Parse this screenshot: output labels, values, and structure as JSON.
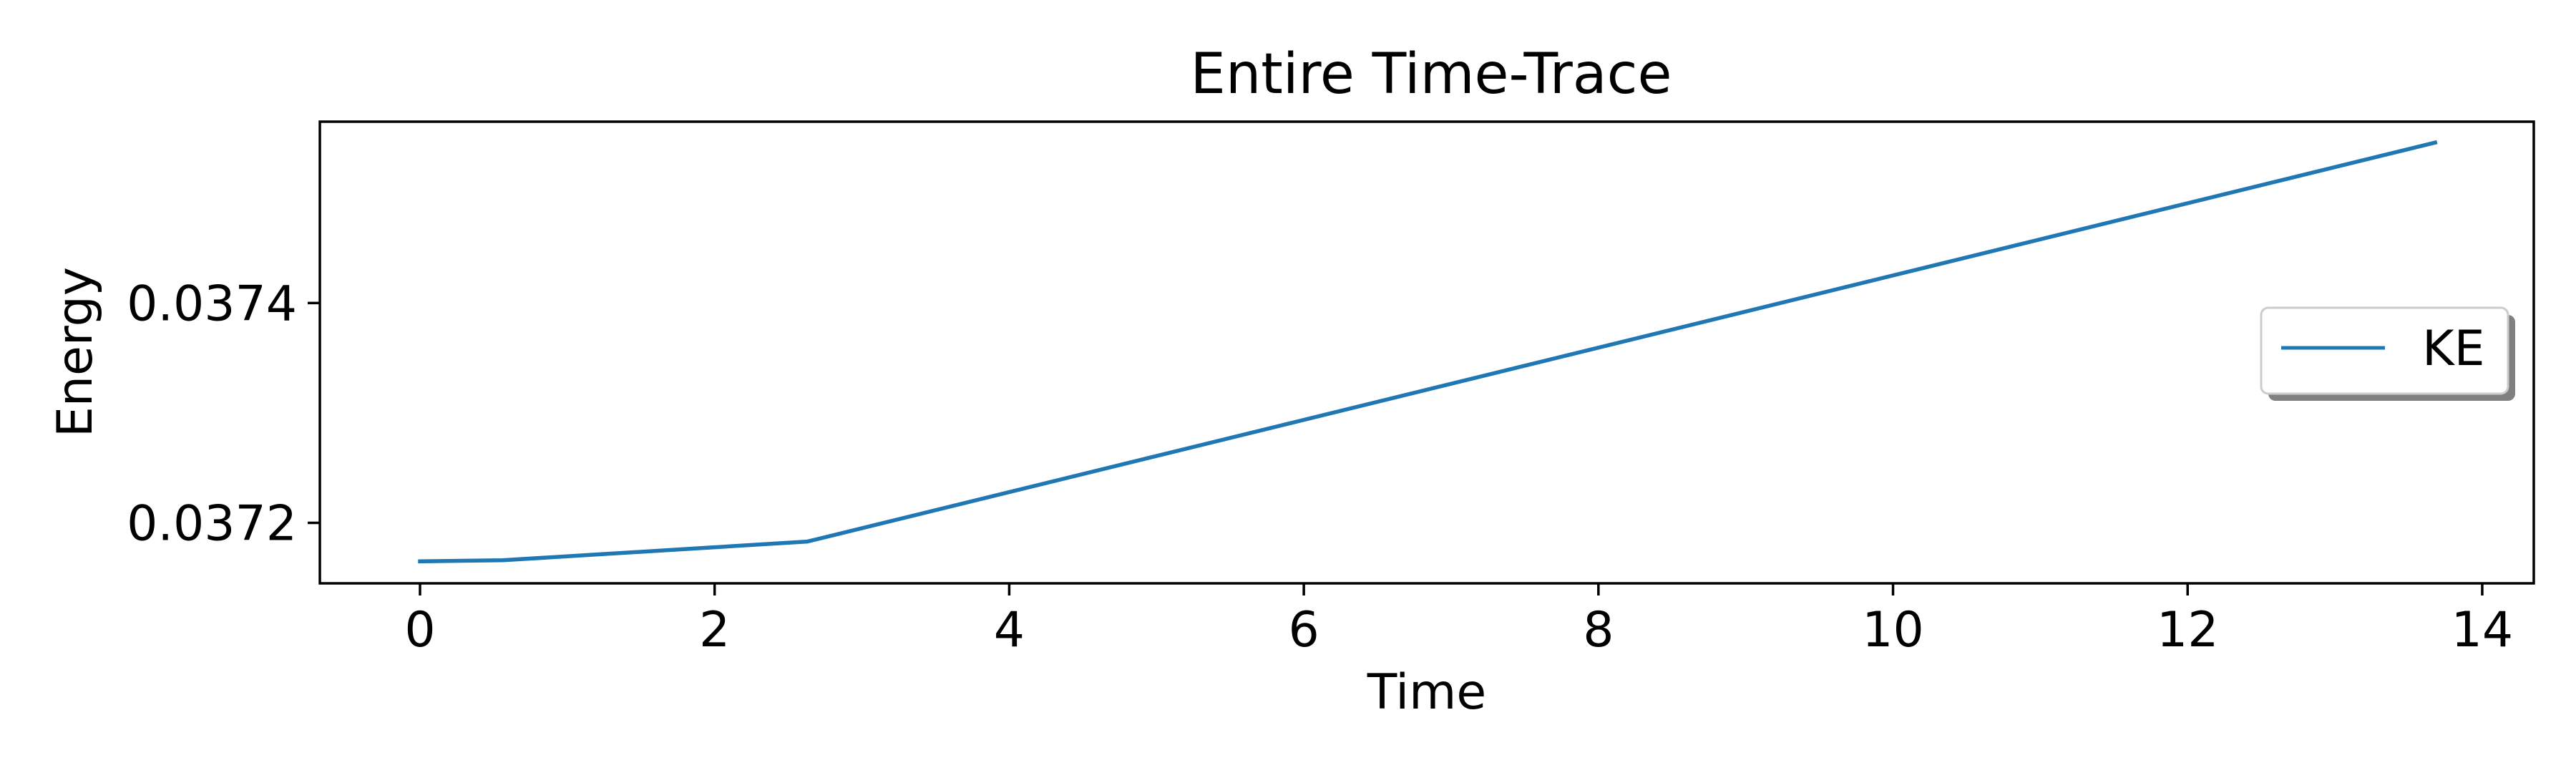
{
  "chart_data": {
    "type": "line",
    "title": "Entire Time-Trace",
    "xlabel": "Time",
    "ylabel": "Energy",
    "xlim": [
      -0.68,
      14.35
    ],
    "ylim": [
      0.037145,
      0.037565
    ],
    "x_ticks": [
      0,
      2,
      4,
      6,
      8,
      10,
      12,
      14
    ],
    "x_tick_labels": [
      "0",
      "2",
      "4",
      "6",
      "8",
      "10",
      "12",
      "14"
    ],
    "y_ticks": [
      0.0372,
      0.0374
    ],
    "y_tick_labels": [
      "0.0372",
      "0.0374"
    ],
    "grid": false,
    "legend": {
      "position": "center-right",
      "entries": [
        "KE"
      ]
    },
    "series": [
      {
        "name": "KE",
        "color": "#1f77b4",
        "x": [
          0,
          0.56,
          2.63,
          13.68
        ],
        "y": [
          0.037165,
          0.037166,
          0.037183,
          0.037546
        ]
      }
    ]
  }
}
